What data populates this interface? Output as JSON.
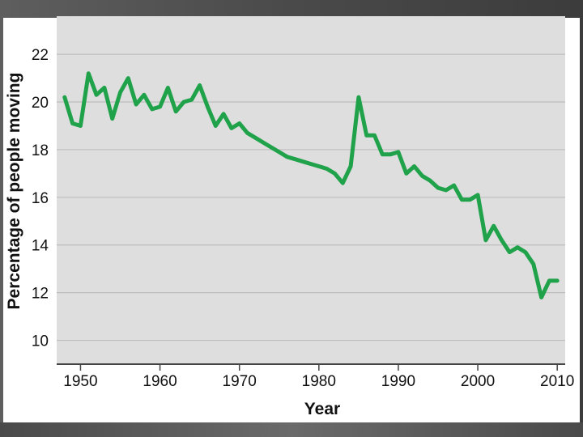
{
  "chart_data": {
    "type": "line",
    "title": "",
    "xlabel": "Year",
    "ylabel": "Percentage of people moving",
    "xlim": [
      1947,
      2011
    ],
    "ylim": [
      9,
      23.6
    ],
    "x_ticks": [
      1950,
      1960,
      1970,
      1980,
      1990,
      2000,
      2010
    ],
    "y_ticks": [
      10,
      12,
      14,
      16,
      18,
      20,
      22
    ],
    "grid": "horizontal",
    "colors": {
      "series": "#1fa24a",
      "grid": "#bdbdbd",
      "axis": "#444444"
    },
    "series": [
      {
        "x": [
          1948,
          1949,
          1950,
          1951,
          1952,
          1953,
          1954,
          1955,
          1956,
          1957,
          1958,
          1959,
          1960,
          1961,
          1962,
          1963,
          1964,
          1965,
          1966,
          1967,
          1968,
          1969,
          1970,
          1971,
          1972,
          1973,
          1974,
          1975,
          1976,
          1977,
          1978,
          1979,
          1980,
          1981,
          1982,
          1983,
          1984,
          1985,
          1986,
          1987,
          1988,
          1989,
          1990,
          1991,
          1992,
          1993,
          1994,
          1995,
          1996,
          1997,
          1998,
          1999,
          2000,
          2001,
          2002,
          2003,
          2004,
          2005,
          2006,
          2007,
          2008,
          2009,
          2010
        ],
        "values": [
          20.2,
          19.1,
          19.0,
          21.2,
          20.3,
          20.6,
          19.3,
          20.4,
          21.0,
          19.9,
          20.3,
          19.7,
          19.8,
          20.6,
          19.6,
          20.0,
          20.1,
          20.7,
          19.8,
          19.0,
          19.5,
          18.9,
          19.1,
          18.7,
          18.5,
          18.3,
          18.1,
          17.9,
          17.7,
          17.6,
          17.5,
          17.4,
          17.3,
          17.2,
          17.0,
          16.6,
          17.3,
          20.2,
          18.6,
          18.6,
          17.8,
          17.8,
          17.9,
          17.0,
          17.3,
          16.9,
          16.7,
          16.4,
          16.3,
          16.5,
          15.9,
          15.9,
          16.1,
          14.2,
          14.8,
          14.2,
          13.7,
          13.9,
          13.7,
          13.2,
          11.8,
          12.5,
          12.5
        ]
      }
    ]
  }
}
